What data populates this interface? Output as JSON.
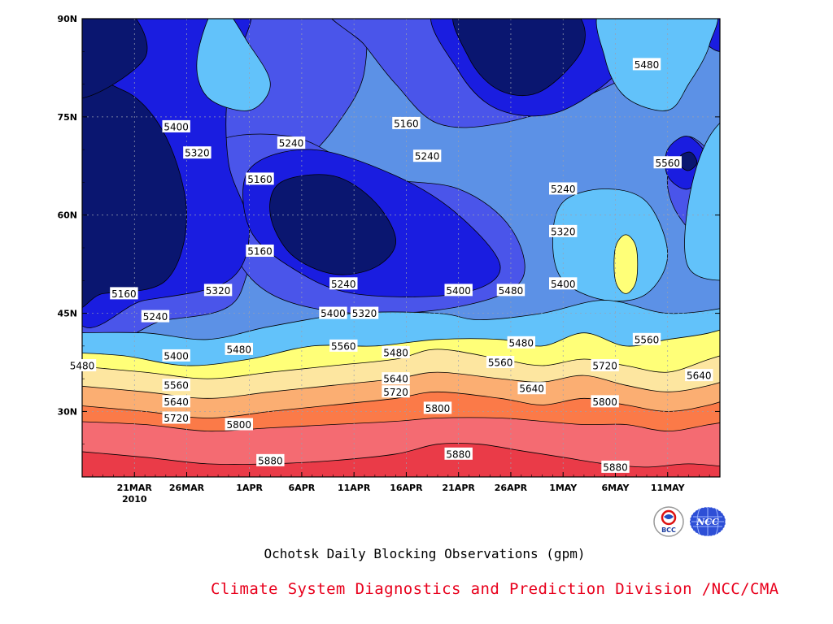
{
  "chart_data": {
    "type": "contour",
    "title": "Ochotsk Daily Blocking Observations (gpm)",
    "credit": "Climate System Diagnostics and Prediction Division /NCC/CMA",
    "x_tick_labels": [
      "21MAR",
      "26MAR",
      "1APR",
      "6APR",
      "11APR",
      "16APR",
      "21APR",
      "26APR",
      "1MAY",
      "6MAY",
      "11MAY"
    ],
    "x_year_label": "2010",
    "y_tick_labels": [
      "90N",
      "75N",
      "60N",
      "45N",
      "30N"
    ],
    "x_range": [
      "2010-03-16",
      "2010-05-16"
    ],
    "y_range": [
      20,
      90
    ],
    "grid": true,
    "contour_levels": [
      5160,
      5240,
      5320,
      5400,
      5480,
      5560,
      5640,
      5720,
      5800,
      5880
    ],
    "fill_colors": [
      "#0a1670",
      "#1a1de0",
      "#4a55ea",
      "#5c91e6",
      "#62c2fa",
      "#ffff78",
      "#fde6a0",
      "#fbae72",
      "#fb7a48",
      "#f46b72",
      "#ea3b48"
    ],
    "contour_labels": [
      {
        "text": "5400",
        "date": "2010-03-25",
        "lat": 73.5
      },
      {
        "text": "5320",
        "date": "2010-03-27",
        "lat": 69.5
      },
      {
        "text": "5240",
        "date": "2010-04-05",
        "lat": 71.0
      },
      {
        "text": "5160",
        "date": "2010-04-02",
        "lat": 65.5
      },
      {
        "text": "5160",
        "date": "2010-04-16",
        "lat": 74.0
      },
      {
        "text": "5240",
        "date": "2010-04-18",
        "lat": 69.0
      },
      {
        "text": "5240",
        "date": "2010-05-01",
        "lat": 64.0
      },
      {
        "text": "5320",
        "date": "2010-05-01",
        "lat": 57.5
      },
      {
        "text": "5160",
        "date": "2010-04-02",
        "lat": 54.5
      },
      {
        "text": "5160",
        "date": "2010-03-20",
        "lat": 48.0
      },
      {
        "text": "5240",
        "date": "2010-03-23",
        "lat": 44.5
      },
      {
        "text": "5320",
        "date": "2010-03-29",
        "lat": 48.5
      },
      {
        "text": "5240",
        "date": "2010-04-10",
        "lat": 49.5
      },
      {
        "text": "5400",
        "date": "2010-04-09",
        "lat": 45.0
      },
      {
        "text": "5320",
        "date": "2010-04-12",
        "lat": 45.0
      },
      {
        "text": "5400",
        "date": "2010-04-21",
        "lat": 48.5
      },
      {
        "text": "5480",
        "date": "2010-04-26",
        "lat": 48.5
      },
      {
        "text": "5400",
        "date": "2010-05-01",
        "lat": 49.5
      },
      {
        "text": "5480",
        "date": "2010-05-09",
        "lat": 83.0
      },
      {
        "text": "5560",
        "date": "2010-05-11",
        "lat": 68.0
      },
      {
        "text": "5480",
        "date": "2010-03-16",
        "lat": 37.0
      },
      {
        "text": "5400",
        "date": "2010-03-25",
        "lat": 38.5
      },
      {
        "text": "5480",
        "date": "2010-03-31",
        "lat": 39.5
      },
      {
        "text": "5560",
        "date": "2010-04-10",
        "lat": 40.0
      },
      {
        "text": "5480",
        "date": "2010-04-15",
        "lat": 39.0
      },
      {
        "text": "5480",
        "date": "2010-04-27",
        "lat": 40.5
      },
      {
        "text": "5560",
        "date": "2010-04-25",
        "lat": 37.5
      },
      {
        "text": "5560",
        "date": "2010-05-09",
        "lat": 41.0
      },
      {
        "text": "5560",
        "date": "2010-03-25",
        "lat": 34.0
      },
      {
        "text": "5640",
        "date": "2010-04-15",
        "lat": 35.0
      },
      {
        "text": "5640",
        "date": "2010-04-28",
        "lat": 33.5
      },
      {
        "text": "5720",
        "date": "2010-05-05",
        "lat": 37.0
      },
      {
        "text": "5640",
        "date": "2010-05-14",
        "lat": 35.5
      },
      {
        "text": "5640",
        "date": "2010-03-25",
        "lat": 31.5
      },
      {
        "text": "5720",
        "date": "2010-04-15",
        "lat": 33.0
      },
      {
        "text": "5720",
        "date": "2010-03-25",
        "lat": 29.0
      },
      {
        "text": "5800",
        "date": "2010-05-05",
        "lat": 31.5
      },
      {
        "text": "5800",
        "date": "2010-03-31",
        "lat": 28.0
      },
      {
        "text": "5800",
        "date": "2010-04-19",
        "lat": 30.5
      },
      {
        "text": "5880",
        "date": "2010-04-03",
        "lat": 22.5
      },
      {
        "text": "5880",
        "date": "2010-04-21",
        "lat": 23.5
      },
      {
        "text": "5880",
        "date": "2010-05-06",
        "lat": 21.5
      }
    ]
  },
  "logos": [
    {
      "name": "bcc-logo",
      "text": "BCC"
    },
    {
      "name": "ncc-logo",
      "text": "NCC"
    }
  ]
}
